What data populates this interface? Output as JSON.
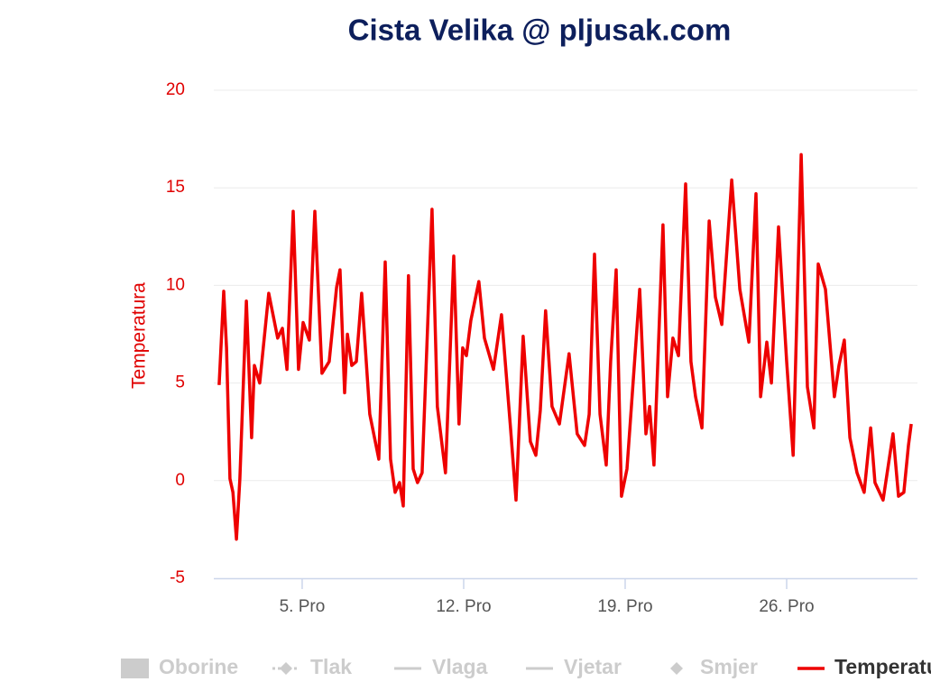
{
  "chart_data": {
    "type": "line",
    "title": "Cista Velika @ pljusak.com",
    "y_axis_label": "Temperatura",
    "xlim": [
      1.17,
      31.67
    ],
    "xticks": [
      {
        "value": 5,
        "label": "5. Pro"
      },
      {
        "value": 12,
        "label": "12. Pro"
      },
      {
        "value": 19,
        "label": "19. Pro"
      },
      {
        "value": 26,
        "label": "26. Pro"
      }
    ],
    "ylim": [
      -5,
      20
    ],
    "yticks": [
      -5,
      0,
      5,
      10,
      15,
      20
    ],
    "grid": true,
    "series": [
      {
        "name": "Temperatura",
        "color": "#ee0000",
        "x": [
          1.4,
          1.6,
          1.72,
          1.87,
          2.0,
          2.15,
          2.3,
          2.58,
          2.81,
          2.93,
          3.16,
          3.55,
          3.94,
          4.14,
          4.34,
          4.61,
          4.84,
          5.04,
          5.31,
          5.55,
          5.86,
          6.17,
          6.49,
          6.64,
          6.84,
          6.96,
          7.15,
          7.35,
          7.58,
          7.93,
          8.32,
          8.6,
          8.83,
          9.03,
          9.22,
          9.38,
          9.61,
          9.81,
          10.0,
          10.2,
          10.63,
          10.86,
          11.21,
          11.57,
          11.8,
          11.96,
          12.12,
          12.31,
          12.66,
          12.9,
          13.29,
          13.64,
          14.03,
          14.27,
          14.58,
          14.89,
          15.13,
          15.32,
          15.55,
          15.83,
          16.15,
          16.57,
          16.92,
          17.24,
          17.44,
          17.67,
          17.91,
          18.18,
          18.37,
          18.61,
          18.84,
          19.08,
          19.27,
          19.63,
          19.9,
          20.06,
          20.25,
          20.64,
          20.84,
          21.07,
          21.31,
          21.62,
          21.85,
          22.05,
          22.33,
          22.64,
          22.91,
          23.19,
          23.62,
          23.97,
          24.36,
          24.67,
          24.87,
          25.14,
          25.34,
          25.65,
          26.0,
          26.28,
          26.63,
          26.9,
          27.18,
          27.37,
          27.68,
          28.07,
          28.27,
          28.5,
          28.74,
          29.05,
          29.36,
          29.64,
          29.83,
          30.18,
          30.61,
          30.85,
          31.08,
          31.28,
          31.4
        ],
        "values": [
          4.9,
          9.7,
          6.8,
          0.1,
          -0.6,
          -3.0,
          0.1,
          9.2,
          2.2,
          5.9,
          5.0,
          9.6,
          7.3,
          7.8,
          5.7,
          13.8,
          5.7,
          8.1,
          7.2,
          13.8,
          5.5,
          6.1,
          9.9,
          10.8,
          4.5,
          7.5,
          5.9,
          6.1,
          9.6,
          3.4,
          1.1,
          11.2,
          1.1,
          -0.6,
          -0.1,
          -1.3,
          10.5,
          0.6,
          -0.1,
          0.4,
          13.9,
          3.8,
          0.4,
          11.5,
          2.9,
          6.8,
          6.4,
          8.2,
          10.2,
          7.3,
          5.7,
          8.5,
          2.7,
          -1.0,
          7.4,
          2.0,
          1.3,
          3.6,
          8.7,
          3.8,
          2.9,
          6.5,
          2.4,
          1.8,
          3.4,
          11.6,
          3.4,
          0.8,
          6.1,
          10.8,
          -0.8,
          0.6,
          3.8,
          9.8,
          2.4,
          3.8,
          0.8,
          13.1,
          4.3,
          7.3,
          6.4,
          15.2,
          6.1,
          4.3,
          2.7,
          13.3,
          9.4,
          8.0,
          15.4,
          9.8,
          7.1,
          14.7,
          4.3,
          7.1,
          5.0,
          13.0,
          6.1,
          1.3,
          16.7,
          4.8,
          2.7,
          11.1,
          9.8,
          4.3,
          5.9,
          7.2,
          2.2,
          0.4,
          -0.6,
          2.7,
          -0.1,
          -1.0,
          2.4,
          -0.8,
          -0.6,
          1.8,
          2.9
        ]
      }
    ],
    "legend": [
      {
        "name": "Oborine",
        "symbol": "rect",
        "hidden": true
      },
      {
        "name": "Tlak",
        "symbol": "dash-diamond",
        "hidden": true
      },
      {
        "name": "Vlaga",
        "symbol": "line",
        "hidden": true
      },
      {
        "name": "Vjetar",
        "symbol": "line",
        "hidden": true
      },
      {
        "name": "Smjer",
        "symbol": "diamond",
        "hidden": true
      }
    ]
  }
}
